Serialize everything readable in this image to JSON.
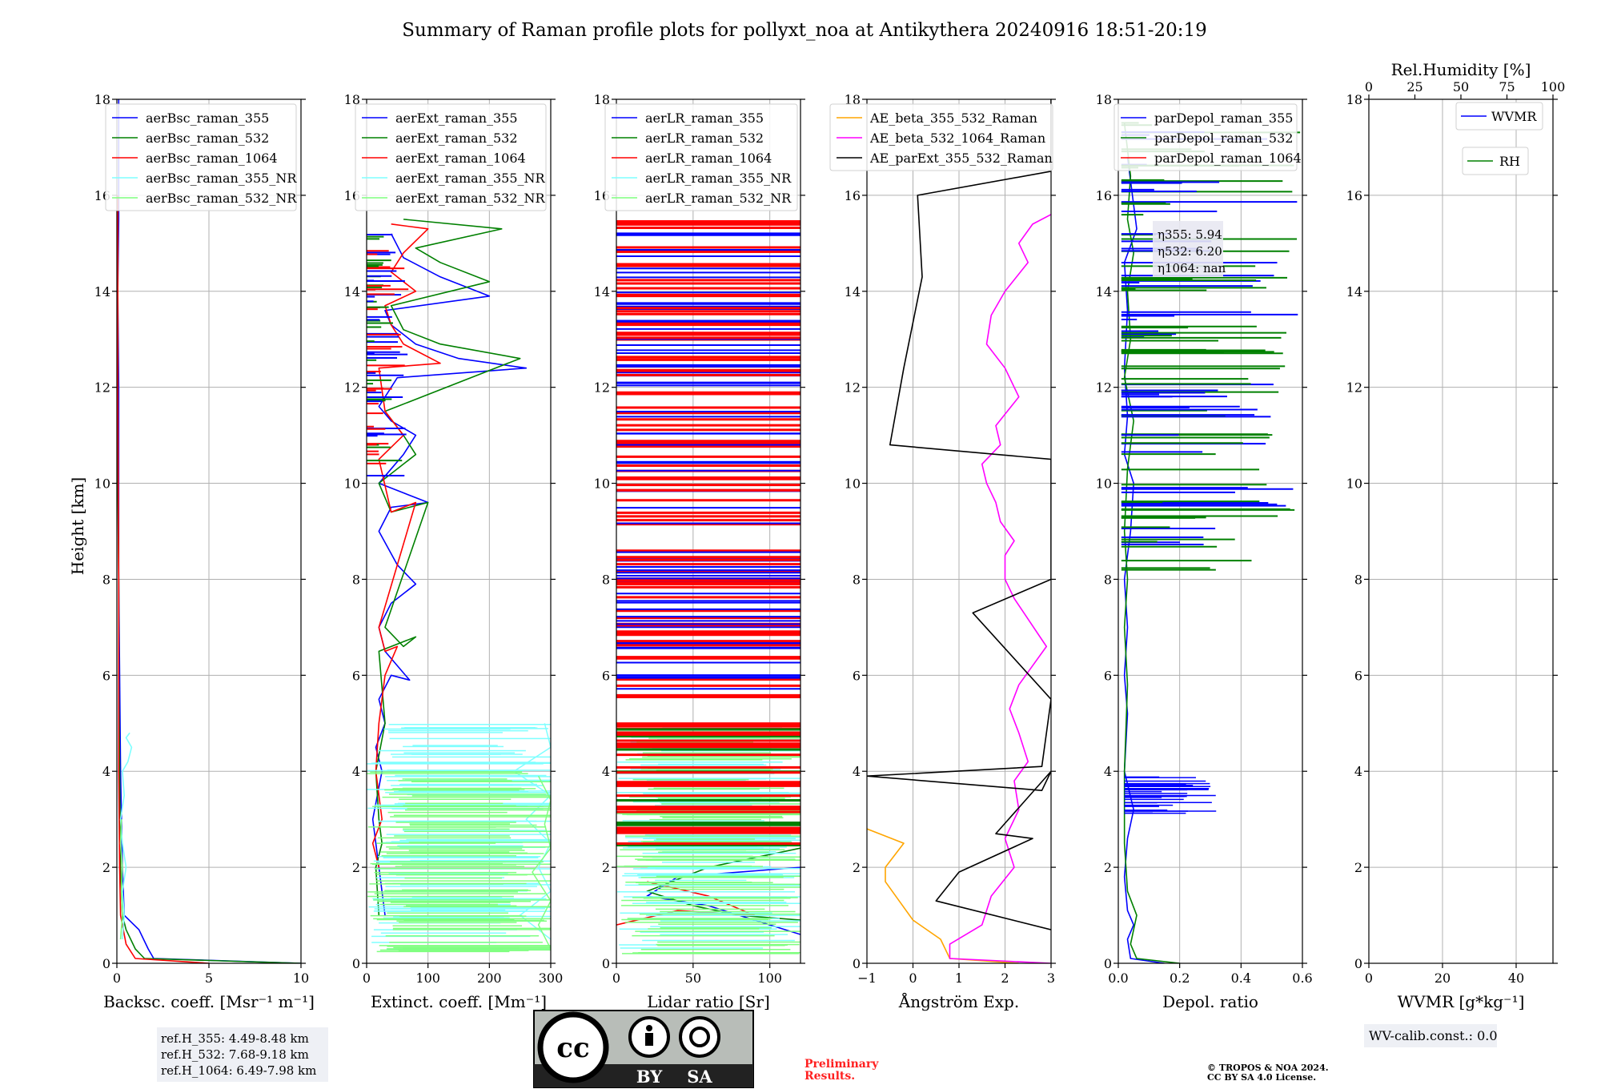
{
  "figure": {
    "title": "Summary of Raman profile plots for pollyxt_noa at Antikythera 20240916 18:51-20:19",
    "ylabel": "Height [km]",
    "reference_heights": [
      "ref.H_355: 4.49-8.48 km",
      "ref.H_532: 7.68-9.18 km",
      "ref.H_1064: 6.49-7.98 km"
    ],
    "license_badge": {
      "cc": "cc",
      "by": "BY",
      "sa": "SA"
    },
    "preliminary": [
      "Preliminary",
      "Results."
    ],
    "copyright": [
      "© TROPOS & NOA 2024.",
      "CC BY SA 4.0 License."
    ],
    "wv_calib": "WV-calib.const.: 0.0",
    "depol_annotation": [
      "η355: 5.94",
      "η532: 6.20",
      "η1064: nan"
    ]
  },
  "colors": {
    "blue": "#0000ff",
    "green": "#008000",
    "red": "#ff0000",
    "cyan": "#7fffff",
    "lightgreen": "#7fff7f",
    "orange": "#ffa500",
    "magenta": "#ff00ff",
    "black": "#000000"
  },
  "chart_data": [
    {
      "type": "line",
      "xlabel": "Backsc. coeff. [Msr⁻¹ m⁻¹]",
      "ylabel": "Height [km]",
      "xlim": [
        0,
        10
      ],
      "ylim": [
        0,
        18
      ],
      "xticks": [
        "0",
        "5",
        "10"
      ],
      "yticks": [
        "0",
        "2",
        "4",
        "6",
        "8",
        "10",
        "12",
        "14",
        "16",
        "18"
      ],
      "legend": [
        "aerBsc_raman_355",
        "aerBsc_raman_532",
        "aerBsc_raman_1064",
        "aerBsc_raman_355_NR",
        "aerBsc_raman_532_NR"
      ],
      "series": [
        {
          "name": "aerBsc_raman_355",
          "color": "blue",
          "x": [
            10,
            2,
            1.7,
            1.2,
            0.4,
            0.3,
            0.2,
            0.15,
            0.1,
            0.1,
            0.1,
            0.05,
            0.1,
            0.1,
            0.1
          ],
          "y": [
            0,
            0.1,
            0.3,
            0.7,
            1,
            2,
            4,
            6,
            8,
            10,
            12,
            14,
            15.5,
            17,
            18
          ]
        },
        {
          "name": "aerBsc_raman_532",
          "color": "green",
          "x": [
            10,
            1.5,
            1.0,
            0.5,
            0.3,
            0.2,
            0.15,
            0.1,
            0.1,
            0.05,
            0.05,
            0.05
          ],
          "y": [
            0,
            0.1,
            0.3,
            0.7,
            1,
            2,
            4,
            6,
            8,
            10,
            12,
            16
          ]
        },
        {
          "name": "aerBsc_raman_1064",
          "color": "red",
          "x": [
            5,
            1.0,
            0.5,
            0.2,
            0.15,
            0.1,
            0.1,
            0.05,
            0.05
          ],
          "y": [
            0,
            0.1,
            0.4,
            1,
            2,
            4,
            8,
            12,
            16
          ]
        },
        {
          "name": "aerBsc_raman_355_NR",
          "color": "cyan",
          "x": [
            0.3,
            0.4,
            0.3,
            0.5,
            0.3,
            0.2,
            0.4,
            0.3,
            0.6,
            0.8,
            0.5,
            0.7
          ],
          "y": [
            0.5,
            1,
            1.5,
            2,
            2.5,
            3,
            3.5,
            4,
            4.2,
            4.5,
            4.7,
            4.8
          ]
        },
        {
          "name": "aerBsc_raman_532_NR",
          "color": "lightgreen",
          "x": [
            0.2,
            0.3,
            0.25,
            0.3,
            0.2,
            0.25
          ],
          "y": [
            0.5,
            1,
            1.5,
            2,
            2.5,
            3
          ]
        }
      ]
    },
    {
      "type": "line",
      "xlabel": "Extinct. coeff. [Mm⁻¹]",
      "xlim": [
        0,
        300
      ],
      "ylim": [
        0,
        18
      ],
      "xticks": [
        "0",
        "100",
        "200",
        "300"
      ],
      "yticks": [
        "0",
        "2",
        "4",
        "6",
        "8",
        "10",
        "12",
        "14",
        "16",
        "18"
      ],
      "legend": [
        "aerExt_raman_355",
        "aerExt_raman_532",
        "aerExt_raman_1064",
        "aerExt_raman_355_NR",
        "aerExt_raman_532_NR"
      ],
      "series": [
        {
          "name": "aerExt_raman_355",
          "color": "blue",
          "x": [
            30,
            20,
            10,
            25,
            15,
            30,
            20,
            40,
            70,
            50,
            30,
            20,
            40,
            80,
            50,
            20,
            40,
            100,
            60,
            20,
            40,
            60,
            80,
            40,
            20,
            50,
            260,
            150,
            80,
            40,
            30,
            200,
            120,
            60,
            40
          ],
          "y": [
            1,
            2,
            3,
            4,
            4.5,
            5,
            5.5,
            6,
            5.9,
            6.2,
            6.5,
            7,
            7.5,
            7.9,
            8.3,
            9,
            9.5,
            9.6,
            9.8,
            10,
            10.3,
            10.6,
            11,
            11.3,
            11.6,
            12.2,
            12.4,
            12.6,
            12.9,
            13.3,
            13.6,
            13.9,
            14.3,
            14.7,
            15.2
          ]
        },
        {
          "name": "aerExt_raman_532",
          "color": "green",
          "x": [
            20,
            15,
            25,
            20,
            15,
            30,
            20,
            80,
            60,
            30,
            100,
            40,
            20,
            80,
            60,
            30,
            250,
            120,
            60,
            40,
            200,
            120,
            80,
            220,
            60
          ],
          "y": [
            1,
            2,
            2.5,
            3,
            4,
            5,
            6.5,
            6.8,
            6.6,
            7,
            9.6,
            9.4,
            10,
            10.6,
            11,
            11.5,
            12.6,
            12.9,
            13.2,
            13.7,
            14.2,
            14.6,
            14.9,
            15.3,
            15.5
          ]
        },
        {
          "name": "aerExt_raman_1064",
          "color": "red",
          "x": [
            20,
            10,
            25,
            15,
            20,
            30,
            50,
            30,
            20,
            80,
            40,
            20,
            60,
            30,
            20,
            120,
            60,
            40,
            30,
            80,
            40,
            60,
            100,
            40
          ],
          "y": [
            2,
            2.5,
            3,
            4,
            5,
            6,
            6.6,
            6.5,
            7,
            9.6,
            9.4,
            10.5,
            11,
            11.5,
            12.4,
            12.5,
            12.9,
            13.3,
            13.7,
            14,
            14.4,
            14.8,
            15.3,
            15.4
          ]
        },
        {
          "name": "aerExt_raman_355_NR",
          "color": "cyan",
          "hlines_up_to": 5.0,
          "x": [
            300,
            250,
            300,
            280,
            300,
            260,
            300,
            240,
            300,
            290
          ],
          "y": [
            0.5,
            1,
            1.5,
            2,
            2.5,
            3,
            3.5,
            4,
            4.5,
            5
          ]
        },
        {
          "name": "aerExt_raman_532_NR",
          "color": "lightgreen",
          "hlines_up_to": 4.0,
          "x": [
            300,
            280,
            300,
            270,
            300,
            290,
            300,
            280
          ],
          "y": [
            0.3,
            0.8,
            1.3,
            1.9,
            2.4,
            2.9,
            3.4,
            3.9
          ]
        }
      ]
    },
    {
      "type": "line",
      "xlabel": "Lidar ratio [Sr]",
      "xlim": [
        0,
        120
      ],
      "ylim": [
        0,
        18
      ],
      "xticks": [
        "0",
        "50",
        "100"
      ],
      "yticks": [
        "0",
        "2",
        "4",
        "6",
        "8",
        "10",
        "12",
        "14",
        "16",
        "18"
      ],
      "legend": [
        "aerLR_raman_355",
        "aerLR_raman_532",
        "aerLR_raman_1064",
        "aerLR_raman_355_NR",
        "aerLR_raman_532_NR"
      ],
      "series": [
        {
          "name": "aerLR_raman_355",
          "color": "blue",
          "x": [
            120,
            40,
            20,
            60,
            90,
            120
          ],
          "y": [
            2,
            1.8,
            1.4,
            1.2,
            0.9,
            0.6
          ]
        },
        {
          "name": "aerLR_raman_532",
          "color": "green",
          "x": [
            120,
            60,
            20,
            50,
            80,
            120
          ],
          "y": [
            2.4,
            2.0,
            1.5,
            1.2,
            1.0,
            0.9
          ]
        },
        {
          "name": "aerLR_raman_1064",
          "color": "red",
          "x": [
            0,
            40,
            90,
            60,
            20
          ],
          "y": [
            0.8,
            1.1,
            1.0,
            1.4,
            1.7
          ]
        },
        {
          "name": "aerLR_raman_355_NR",
          "color": "cyan",
          "hlines_up_to": 5.0
        },
        {
          "name": "aerLR_raman_532_NR",
          "color": "lightgreen",
          "hlines_up_to": 5.0
        }
      ]
    },
    {
      "type": "line",
      "xlabel": "Ångström Exp.",
      "xlim": [
        -1,
        3
      ],
      "ylim": [
        0,
        18
      ],
      "xticks": [
        "−1",
        "0",
        "1",
        "2",
        "3"
      ],
      "yticks": [
        "0",
        "2",
        "4",
        "6",
        "8",
        "10",
        "12",
        "14",
        "16",
        "18"
      ],
      "legend": [
        "AE_beta_355_532_Raman",
        "AE_beta_532_1064_Raman",
        "AE_parExt_355_532_Raman"
      ],
      "series": [
        {
          "name": "AE_beta_355_532_Raman",
          "color": "orange",
          "x": [
            2.3,
            0.8,
            0.6,
            0,
            -0.3,
            -0.6,
            -0.6,
            -0.2,
            -1
          ],
          "y": [
            0,
            0.1,
            0.5,
            0.9,
            1.3,
            1.7,
            2.0,
            2.5,
            2.8
          ]
        },
        {
          "name": "AE_beta_532_1064_Raman",
          "color": "magenta",
          "x": [
            3,
            0.8,
            0.8,
            1.5,
            1.7,
            2.2,
            2.0,
            2.3,
            2.2,
            2.5,
            2.3,
            2.1,
            2.3,
            2.6,
            2.9,
            2.2,
            2.0,
            2.0,
            2.2,
            1.9,
            1.8,
            1.6,
            1.5,
            1.9,
            1.8,
            2.3,
            2.0,
            1.6,
            1.7,
            2.0,
            2.5,
            2.3,
            2.6,
            3
          ],
          "y": [
            0,
            0.1,
            0.4,
            0.8,
            1.4,
            2.0,
            2.6,
            3.2,
            3.8,
            4.2,
            4.8,
            5.3,
            5.8,
            6.2,
            6.6,
            7.6,
            8.0,
            8.5,
            8.8,
            9.2,
            9.6,
            10.0,
            10.4,
            10.8,
            11.2,
            11.8,
            12.4,
            12.9,
            13.5,
            14.0,
            14.6,
            15.0,
            15.4,
            15.6
          ]
        },
        {
          "name": "AE_parExt_355_532_Raman",
          "color": "black",
          "x": [
            3,
            0.5,
            1.0,
            2.6,
            1.8,
            3,
            2.8,
            -1,
            2.8,
            3,
            1.3,
            3.0,
            3.0,
            -0.5,
            -0.2,
            0.2,
            0.1,
            3,
            3
          ],
          "y": [
            0.7,
            1.3,
            1.9,
            2.6,
            2.7,
            4.0,
            3.6,
            3.9,
            4.1,
            5.5,
            7.3,
            8.0,
            10.5,
            10.8,
            12.4,
            14.3,
            16.0,
            16.5,
            18
          ]
        }
      ]
    },
    {
      "type": "line",
      "xlabel": "Depol. ratio",
      "xlim": [
        0,
        0.6
      ],
      "ylim": [
        0,
        18
      ],
      "xticks": [
        "0.0",
        "0.2",
        "0.4",
        "0.6"
      ],
      "yticks": [
        "0",
        "2",
        "4",
        "6",
        "8",
        "10",
        "12",
        "14",
        "16",
        "18"
      ],
      "legend": [
        "parDepol_raman_355",
        "parDepol_raman_532",
        "parDepol_raman_1064"
      ],
      "series": [
        {
          "name": "parDepol_raman_355",
          "color": "blue",
          "x": [
            0.15,
            0.04,
            0.03,
            0.05,
            0.03,
            0.02,
            0.03,
            0.05,
            0.02,
            0.03,
            0.02,
            0.03,
            0.02,
            0.04,
            0.05,
            0.02,
            0.03,
            0.02,
            0.03,
            0.02,
            0.06,
            0.03
          ],
          "y": [
            0,
            0.1,
            0.5,
            0.8,
            1.1,
            1.8,
            2.6,
            3.2,
            4.0,
            5.2,
            6.0,
            7.0,
            8.0,
            9.0,
            10.0,
            10.6,
            11.4,
            12.4,
            13.6,
            14.6,
            15.3,
            16.8
          ]
        },
        {
          "name": "parDepol_raman_532",
          "color": "green",
          "x": [
            0.2,
            0.06,
            0.04,
            0.06,
            0.03,
            0.02,
            0.02,
            0.03,
            0.02,
            0.03,
            0.02,
            0.03,
            0.05,
            0.02,
            0.04,
            0.03,
            0.05,
            0.03,
            0.04,
            0.02
          ],
          "y": [
            0,
            0.1,
            0.4,
            1.0,
            1.5,
            2.5,
            4.0,
            5.8,
            7.0,
            8.0,
            9.0,
            10.3,
            11.3,
            12.2,
            13.0,
            14.0,
            14.8,
            15.5,
            16.4,
            17.5
          ]
        },
        {
          "name": "parDepol_raman_1064",
          "color": "red",
          "x": [],
          "y": []
        }
      ]
    },
    {
      "type": "line",
      "xlabel": "WVMR [g*kg⁻¹]",
      "x2label": "Rel.Humidity [%]",
      "xlim": [
        0,
        50
      ],
      "x2lim": [
        0,
        100
      ],
      "ylim": [
        0,
        18
      ],
      "xticks": [
        "0",
        "20",
        "40"
      ],
      "x2ticks": [
        "0",
        "25",
        "50",
        "75",
        "100"
      ],
      "yticks": [
        "0",
        "2",
        "4",
        "6",
        "8",
        "10",
        "12",
        "14",
        "16",
        "18"
      ],
      "legend": [
        "WVMR",
        "RH"
      ],
      "series": [
        {
          "name": "WVMR",
          "color": "blue",
          "x": [],
          "y": []
        },
        {
          "name": "RH",
          "color": "green",
          "x": [],
          "y": []
        }
      ]
    }
  ]
}
